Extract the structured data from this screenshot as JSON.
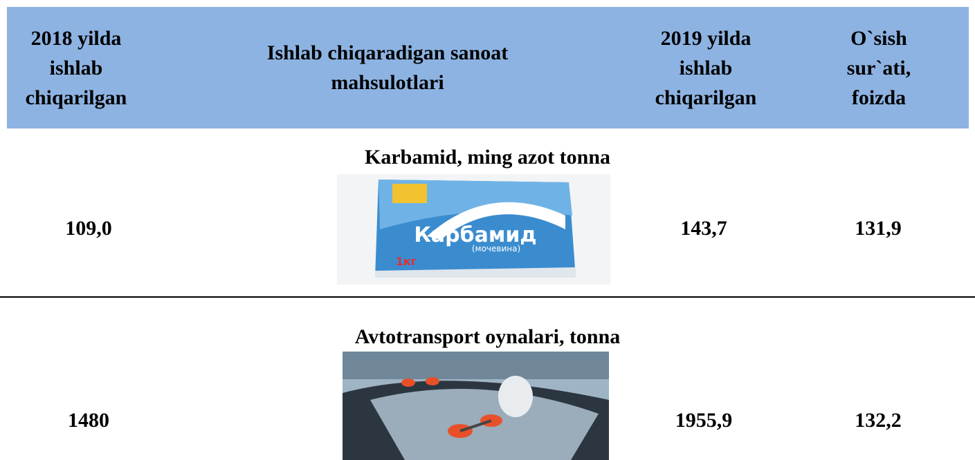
{
  "header": [
    "2018 yilda ishlab chiqarilgan",
    "Ishlab chiqaradigan sanoat mahsulotlari",
    "2019 yilda ishlab chiqarilgan",
    "O`sish sur`ati, foizda"
  ],
  "sections": [
    {
      "title": "Karbamid, ming azot tonna",
      "values": [
        "109,0",
        "143,7",
        "131,9"
      ],
      "image": {
        "label": "Карбамид",
        "sublabel": "(мочевина)",
        "weight": "1кг"
      }
    },
    {
      "title": "Avtotransport oynalari, tonna",
      "values": [
        "1480",
        "1955,9",
        "132,2"
      ]
    }
  ]
}
